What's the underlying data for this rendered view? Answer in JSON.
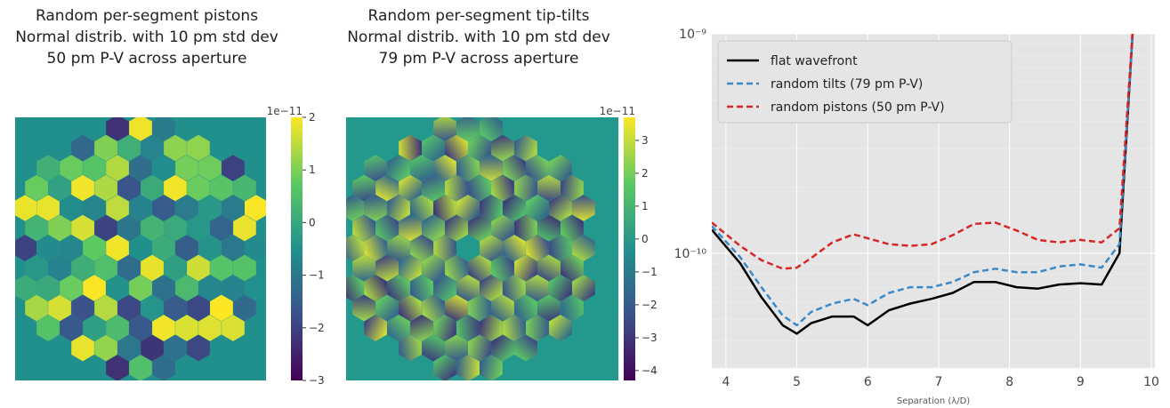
{
  "panels": [
    {
      "title_lines": [
        "Random per-segment pistons",
        "Normal distrib. with 10 pm std dev",
        "50 pm P-V across aperture"
      ],
      "colorbar": {
        "scale_label": "1e−11",
        "ticks": [
          "2",
          "1",
          "0",
          "−1",
          "−2",
          "−3"
        ],
        "tick_values": [
          2,
          1,
          0,
          -1,
          -2,
          -3
        ],
        "range": [
          -3,
          2
        ]
      }
    },
    {
      "title_lines": [
        "Random per-segment tip-tilts",
        "Normal distrib. with 10 pm std dev",
        "79 pm P-V across aperture"
      ],
      "colorbar": {
        "scale_label": "1e−11",
        "ticks": [
          "3",
          "2",
          "1",
          "0",
          "−1",
          "−2",
          "−3",
          "−4"
        ],
        "tick_values": [
          3,
          2,
          1,
          0,
          -1,
          -2,
          -3,
          -4
        ],
        "range": [
          -4.3,
          3.7
        ]
      }
    }
  ],
  "colors": {
    "viridis": [
      "#440154",
      "#3b528b",
      "#21908d",
      "#5dc963",
      "#fde725"
    ],
    "plot_bg": "#e5e5e5"
  },
  "chart_data": {
    "type": "line",
    "xlabel": "Separation (λ/D)",
    "ylabel": "",
    "yscale": "log",
    "xlim": [
      3.8,
      10.05
    ],
    "ylim": [
      3e-11,
      1e-09
    ],
    "grid": true,
    "legend_position": "top-left",
    "x_ticks": [
      "4",
      "5",
      "6",
      "7",
      "8",
      "9",
      "10"
    ],
    "y_ticks": [
      "10⁻⁹",
      "10⁻¹⁰"
    ],
    "x": [
      3.8,
      4.2,
      4.5,
      4.8,
      5.0,
      5.2,
      5.5,
      5.8,
      6.0,
      6.3,
      6.6,
      6.9,
      7.2,
      7.5,
      7.8,
      8.1,
      8.4,
      8.7,
      9.0,
      9.3,
      9.55,
      9.75
    ],
    "series": [
      {
        "name": "flat wavefront",
        "color": "#000000",
        "dash": "solid",
        "values": [
          1.28e-10,
          9e-11,
          6.3e-11,
          4.7e-11,
          4.3e-11,
          4.8e-11,
          5.15e-11,
          5.15e-11,
          4.7e-11,
          5.5e-11,
          5.9e-11,
          6.2e-11,
          6.6e-11,
          7.4e-11,
          7.4e-11,
          7e-11,
          6.9e-11,
          7.2e-11,
          7.3e-11,
          7.2e-11,
          1e-10,
          1.2e-09
        ]
      },
      {
        "name": "random tilts (79 pm P-V)",
        "color": "#3b89c9",
        "dash": "dashed",
        "values": [
          1.33e-10,
          9.6e-11,
          7e-11,
          5.2e-11,
          4.7e-11,
          5.4e-11,
          5.9e-11,
          6.2e-11,
          5.8e-11,
          6.6e-11,
          7e-11,
          7e-11,
          7.4e-11,
          8.2e-11,
          8.5e-11,
          8.2e-11,
          8.2e-11,
          8.7e-11,
          8.9e-11,
          8.6e-11,
          1.1e-10,
          1.2e-09
        ]
      },
      {
        "name": "random pistons (50 pm P-V)",
        "color": "#d62728",
        "dash": "dashed",
        "values": [
          1.38e-10,
          1.08e-10,
          9.3e-11,
          8.5e-11,
          8.6e-11,
          9.5e-11,
          1.12e-10,
          1.22e-10,
          1.17e-10,
          1.1e-10,
          1.08e-10,
          1.1e-10,
          1.21e-10,
          1.36e-10,
          1.38e-10,
          1.27e-10,
          1.15e-10,
          1.12e-10,
          1.15e-10,
          1.12e-10,
          1.3e-10,
          1.2e-09
        ]
      }
    ]
  }
}
